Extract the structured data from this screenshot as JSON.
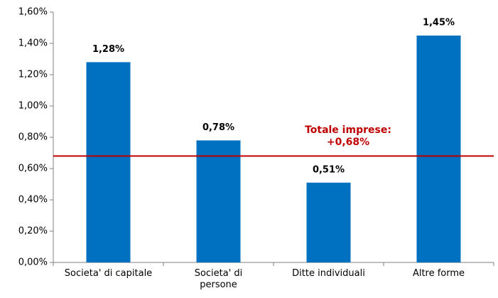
{
  "chart_data": {
    "type": "bar",
    "categories": [
      "Societa' di capitale",
      "Societa' di\npersone",
      "Ditte individuali",
      "Altre forme"
    ],
    "values": [
      1.28,
      0.78,
      0.51,
      1.45
    ],
    "value_labels": [
      "1,28%",
      "0,78%",
      "0,51%",
      "1,45%"
    ],
    "color": "#0070c0",
    "ylim": [
      0,
      1.6
    ],
    "yticks": [
      {
        "value": 0,
        "label": "0,00%"
      },
      {
        "value": 0.2,
        "label": "0,20%"
      },
      {
        "value": 0.4,
        "label": "0,40%"
      },
      {
        "value": 0.6,
        "label": "0,60%"
      },
      {
        "value": 0.8,
        "label": "0,80%"
      },
      {
        "value": 1.0,
        "label": "1,00%"
      },
      {
        "value": 1.2,
        "label": "1,20%"
      },
      {
        "value": 1.4,
        "label": "1,40%"
      },
      {
        "value": 1.6,
        "label": "1,60%"
      }
    ],
    "grid": false,
    "reference_line": {
      "value": 0.68,
      "label": "Totale imprese:\n+0,68%",
      "color": "#c00000"
    }
  }
}
